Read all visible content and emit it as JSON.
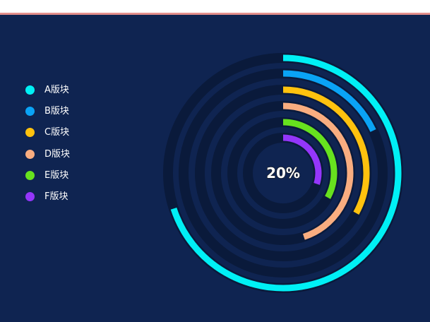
{
  "chart_data": {
    "type": "radial-bar",
    "center_label": "20%",
    "max": 100,
    "series": [
      {
        "name": "A版块",
        "value": 70,
        "color": "#00f0f5"
      },
      {
        "name": "B版块",
        "value": 18,
        "color": "#0aa3f5"
      },
      {
        "name": "C版块",
        "value": 33,
        "color": "#ffc20e"
      },
      {
        "name": "D版块",
        "value": 45,
        "color": "#f9ad80"
      },
      {
        "name": "E版块",
        "value": 33,
        "color": "#67e21e"
      },
      {
        "name": "F版块",
        "value": 30,
        "color": "#9436fa"
      }
    ],
    "track_color": "#0a1a3b",
    "legend_position": "left"
  }
}
